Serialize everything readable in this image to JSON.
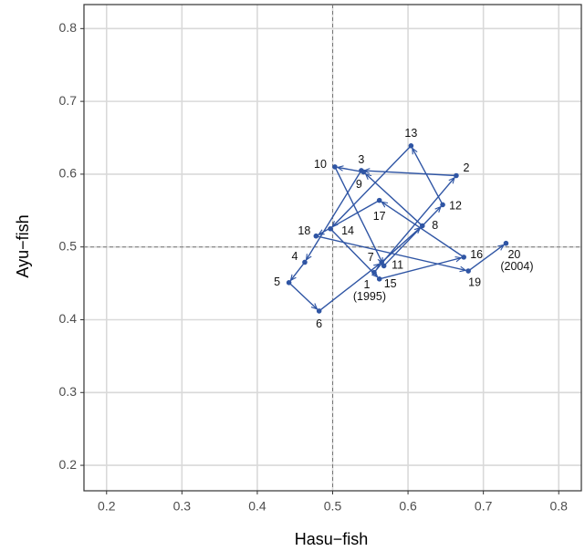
{
  "chart_data": {
    "type": "path",
    "x_label": "Hasu−fish",
    "y_label": "Ayu−fish",
    "x": [
      0.555,
      0.664,
      0.538,
      0.463,
      0.442,
      0.482,
      0.565,
      0.619,
      0.541,
      0.503,
      0.568,
      0.646,
      0.604,
      0.497,
      0.562,
      0.674,
      0.562,
      0.478,
      0.68,
      0.73
    ],
    "y": [
      0.465,
      0.598,
      0.605,
      0.479,
      0.451,
      0.412,
      0.479,
      0.529,
      0.603,
      0.61,
      0.474,
      0.558,
      0.639,
      0.525,
      0.456,
      0.486,
      0.564,
      0.515,
      0.467,
      0.505
    ],
    "labels": [
      [
        "1",
        "(1995)"
      ],
      [
        "2"
      ],
      [
        "3"
      ],
      [
        "4"
      ],
      [
        "5"
      ],
      [
        "6"
      ],
      [
        "7"
      ],
      [
        "8"
      ],
      [
        "9"
      ],
      [
        "10"
      ],
      [
        "11"
      ],
      [
        "12"
      ],
      [
        "13"
      ],
      [
        "14"
      ],
      [
        "15"
      ],
      [
        "16"
      ],
      [
        "17"
      ],
      [
        "18"
      ],
      [
        "19"
      ],
      [
        "20",
        "(2004)"
      ]
    ],
    "color": "#2f55a4",
    "xlim": [
      0.17,
      0.83
    ],
    "ylim": [
      0.165,
      0.833
    ],
    "xticks": [
      0.2,
      0.3,
      0.4,
      0.5,
      0.6,
      0.7,
      0.8
    ],
    "yticks": [
      0.2,
      0.3,
      0.4,
      0.5,
      0.6,
      0.7,
      0.8
    ],
    "vline": 0.5,
    "hline": 0.5,
    "grid": true
  }
}
